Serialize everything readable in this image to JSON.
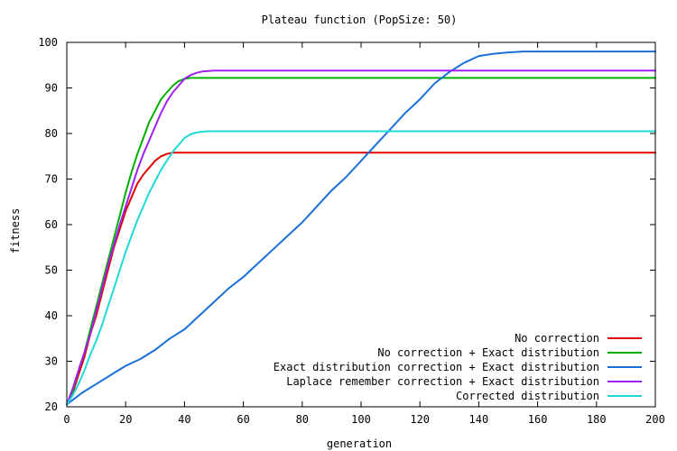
{
  "chart_data": {
    "type": "line",
    "title": "Plateau function (PopSize: 50)",
    "xlabel": "generation",
    "ylabel": "fitness",
    "xlim": [
      0,
      200
    ],
    "ylim": [
      20,
      100
    ],
    "xticks": [
      0,
      20,
      40,
      60,
      80,
      100,
      120,
      140,
      160,
      180,
      200
    ],
    "yticks": [
      20,
      30,
      40,
      50,
      60,
      70,
      80,
      90,
      100
    ],
    "grid": false,
    "legend_position": "bottom-right",
    "series": [
      {
        "name": "No correction",
        "color": "#e00000",
        "x": [
          0,
          2,
          4,
          6,
          8,
          10,
          12,
          14,
          16,
          18,
          20,
          22,
          24,
          26,
          28,
          30,
          32,
          34,
          36,
          38,
          40,
          60,
          100,
          150,
          200
        ],
        "y": [
          20.5,
          23,
          27,
          31,
          36,
          40,
          45,
          50,
          55,
          59,
          63,
          66,
          69,
          71,
          72.5,
          74,
          75,
          75.5,
          75.8,
          75.8,
          75.8,
          75.8,
          75.8,
          75.8,
          75.8
        ]
      },
      {
        "name": "No correction + Exact distribution",
        "color": "#00b000",
        "x": [
          0,
          2,
          4,
          6,
          8,
          10,
          12,
          14,
          16,
          18,
          20,
          22,
          24,
          26,
          28,
          30,
          32,
          34,
          36,
          38,
          40,
          42,
          44,
          60,
          100,
          150,
          200
        ],
        "y": [
          20.5,
          23.5,
          28,
          32,
          37,
          42,
          47,
          52,
          57,
          62,
          67,
          71.5,
          75.5,
          79,
          82.5,
          85,
          87.5,
          89,
          90.5,
          91.5,
          92,
          92.2,
          92.2,
          92.2,
          92.2,
          92.2,
          92.2
        ]
      },
      {
        "name": "Exact distribution correction + Exact distribution",
        "color": "#1a6fd8",
        "x": [
          0,
          5,
          10,
          15,
          20,
          25,
          30,
          35,
          40,
          45,
          50,
          55,
          60,
          65,
          70,
          75,
          80,
          85,
          90,
          95,
          100,
          105,
          110,
          115,
          120,
          125,
          130,
          135,
          140,
          145,
          150,
          155,
          160,
          180,
          200
        ],
        "y": [
          20.5,
          23,
          25,
          27,
          29,
          30.5,
          32.5,
          35,
          37,
          40,
          43,
          46,
          48.5,
          51.5,
          54.5,
          57.5,
          60.5,
          64,
          67.5,
          70.5,
          74,
          77.5,
          81,
          84.5,
          87.5,
          91,
          93.5,
          95.5,
          97,
          97.5,
          97.8,
          98,
          98,
          98,
          98
        ]
      },
      {
        "name": "Laplace remember correction + Exact distribution",
        "color": "#a020f0",
        "x": [
          0,
          2,
          4,
          6,
          8,
          10,
          12,
          14,
          16,
          18,
          20,
          22,
          24,
          26,
          28,
          30,
          32,
          34,
          36,
          38,
          40,
          42,
          44,
          46,
          48,
          50,
          100,
          150,
          200
        ],
        "y": [
          20.5,
          24,
          28,
          32,
          36,
          41,
          46,
          51,
          55.5,
          60,
          64,
          68,
          72,
          75.5,
          78.5,
          81.5,
          84.5,
          87,
          89,
          90.5,
          92,
          92.8,
          93.3,
          93.6,
          93.7,
          93.8,
          93.8,
          93.8,
          93.8
        ]
      },
      {
        "name": "Corrected distribution",
        "color": "#20d8d8",
        "x": [
          0,
          2,
          4,
          6,
          8,
          10,
          12,
          14,
          16,
          18,
          20,
          22,
          24,
          26,
          28,
          30,
          32,
          34,
          36,
          38,
          40,
          42,
          44,
          46,
          48,
          50,
          60,
          100,
          150,
          200
        ],
        "y": [
          20.5,
          22.5,
          25,
          28,
          31.5,
          34.5,
          38,
          42,
          46,
          50,
          54,
          57.5,
          61,
          64,
          67,
          69.5,
          72,
          74,
          76,
          77.5,
          79,
          79.8,
          80.2,
          80.4,
          80.5,
          80.5,
          80.5,
          80.5,
          80.5,
          80.5
        ]
      }
    ]
  }
}
